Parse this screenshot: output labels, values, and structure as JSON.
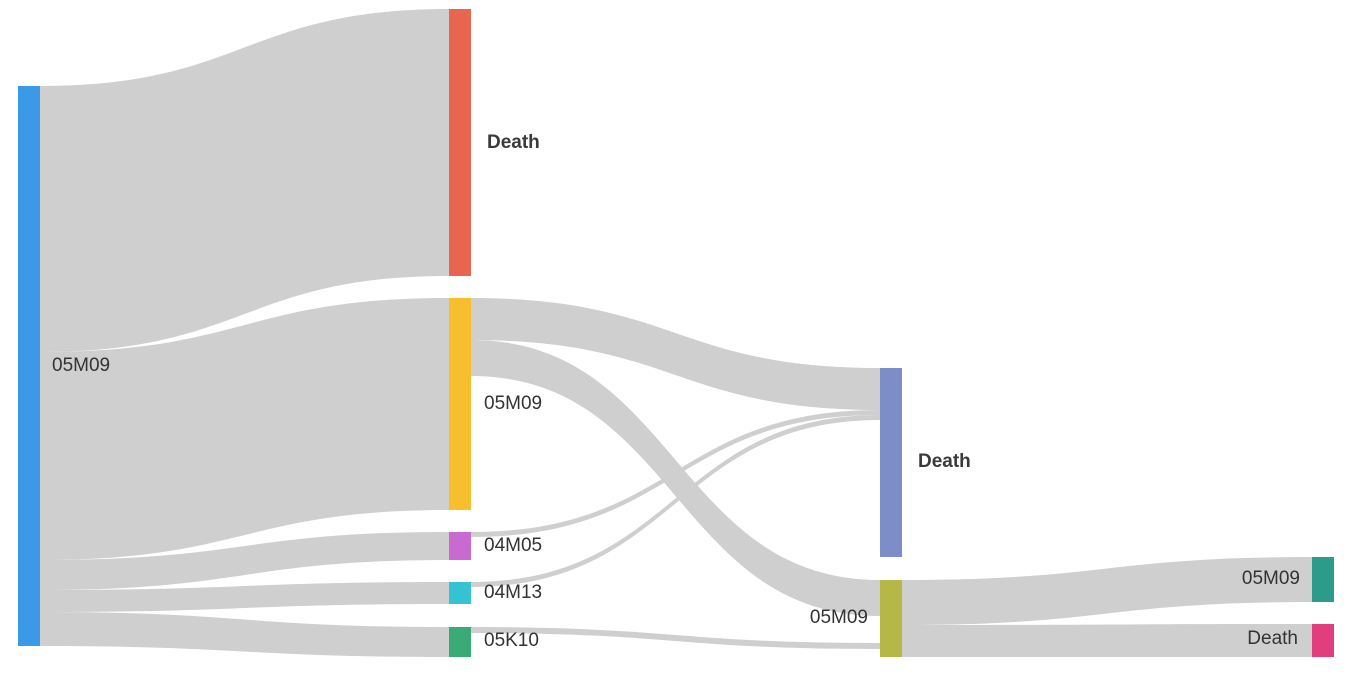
{
  "diagram": {
    "type": "sankey",
    "nodes": [
      {
        "id": "n0",
        "label": "05M09",
        "color": "#3a9ae8",
        "column": 0,
        "bold": false
      },
      {
        "id": "n1",
        "label": "Death",
        "color": "#e8654f",
        "column": 1,
        "bold": true
      },
      {
        "id": "n2",
        "label": "05M09",
        "color": "#f7be2e",
        "column": 1,
        "bold": false
      },
      {
        "id": "n3",
        "label": "04M05",
        "color": "#c86ad0",
        "column": 1,
        "bold": false
      },
      {
        "id": "n4",
        "label": "04M13",
        "color": "#35c2d2",
        "column": 1,
        "bold": false
      },
      {
        "id": "n5",
        "label": "05K10",
        "color": "#3aab76",
        "column": 1,
        "bold": false
      },
      {
        "id": "n6",
        "label": "Death",
        "color": "#7d8dc8",
        "column": 2,
        "bold": true
      },
      {
        "id": "n7",
        "label": "05M09",
        "color": "#b5b847",
        "column": 2,
        "bold": false
      },
      {
        "id": "n8",
        "label": "05M09",
        "color": "#2c9b89",
        "column": 3,
        "bold": false
      },
      {
        "id": "n9",
        "label": "Death",
        "color": "#e23d7c",
        "column": 3,
        "bold": false
      }
    ],
    "links": [
      {
        "source": "n0",
        "target": "n1"
      },
      {
        "source": "n0",
        "target": "n2"
      },
      {
        "source": "n0",
        "target": "n3"
      },
      {
        "source": "n0",
        "target": "n4"
      },
      {
        "source": "n0",
        "target": "n5"
      },
      {
        "source": "n2",
        "target": "n6"
      },
      {
        "source": "n2",
        "target": "n7"
      },
      {
        "source": "n3",
        "target": "n6"
      },
      {
        "source": "n4",
        "target": "n6"
      },
      {
        "source": "n5",
        "target": "n7"
      },
      {
        "source": "n7",
        "target": "n8"
      },
      {
        "source": "n7",
        "target": "n9"
      }
    ],
    "link_color": "#cfcfcf"
  }
}
